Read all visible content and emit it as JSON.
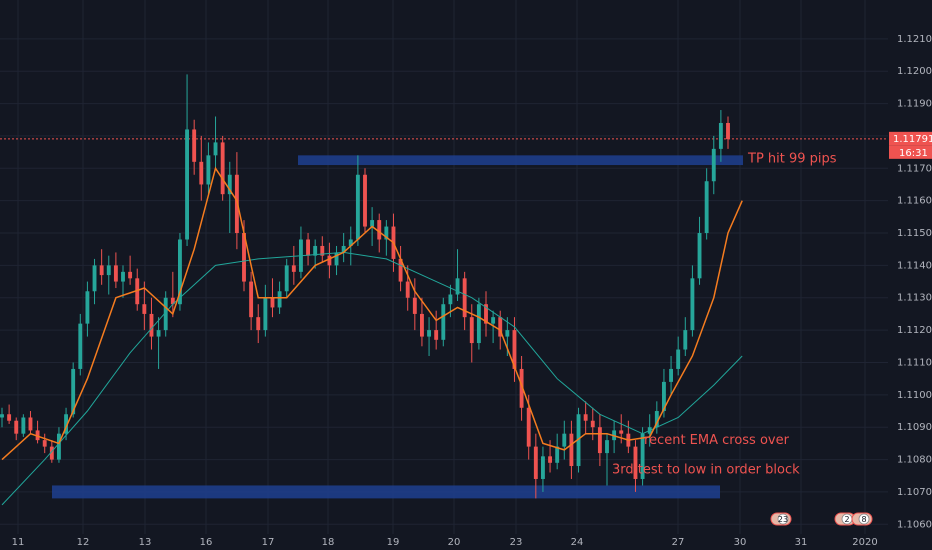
{
  "chart_data": {
    "type": "candlestick",
    "x_ticks": [
      "11",
      "12",
      "13",
      "16",
      "17",
      "18",
      "19",
      "20",
      "23",
      "24",
      "27",
      "30",
      "31",
      "2020"
    ],
    "y_ticks": [
      "1.12100",
      "1.12000",
      "1.11900",
      "1.11800",
      "1.11700",
      "1.11600",
      "1.11500",
      "1.11400",
      "1.11300",
      "1.11200",
      "1.11100",
      "1.11000",
      "1.10900",
      "1.10800",
      "1.10700",
      "1.10600"
    ],
    "ylim": [
      1.1057,
      1.1222
    ],
    "last_price": "1.11791",
    "countdown": "16:31",
    "colors": {
      "up": "#26a69a",
      "down": "#ef5350",
      "ema_fast": "#f57c1f",
      "ema_slow": "#21a69a",
      "zone": "#1e3f8f",
      "annotation": "#ef5350"
    },
    "zones": [
      {
        "from_tick": "17",
        "to_tick": "27",
        "low": 1.1171,
        "high": 1.1174
      },
      {
        "from_tick": "11",
        "to_tick": "27",
        "low": 1.1068,
        "high": 1.1072
      }
    ],
    "annotations": [
      {
        "text": "TP hit 99 pips",
        "price": 1.1173
      },
      {
        "text": "recent EMA cross over",
        "price": 1.1086
      },
      {
        "text": "3rd test to low in order block",
        "price": 1.1077
      }
    ],
    "event_badges": [
      "23",
      "2",
      "8"
    ],
    "candles": [
      [
        1.1093,
        1.1096,
        1.109,
        1.1094
      ],
      [
        1.1094,
        1.1097,
        1.1091,
        1.1092
      ],
      [
        1.1092,
        1.1093,
        1.1086,
        1.1088
      ],
      [
        1.1088,
        1.1094,
        1.1087,
        1.1093
      ],
      [
        1.1093,
        1.1095,
        1.1088,
        1.1089
      ],
      [
        1.1089,
        1.1092,
        1.1085,
        1.1086
      ],
      [
        1.1086,
        1.1088,
        1.1082,
        1.1084
      ],
      [
        1.1084,
        1.1086,
        1.1079,
        1.108
      ],
      [
        1.108,
        1.109,
        1.1079,
        1.1088
      ],
      [
        1.1088,
        1.1096,
        1.1086,
        1.1094
      ],
      [
        1.1094,
        1.111,
        1.1093,
        1.1108
      ],
      [
        1.1108,
        1.1125,
        1.1106,
        1.1122
      ],
      [
        1.1122,
        1.1135,
        1.1118,
        1.1132
      ],
      [
        1.1132,
        1.1142,
        1.1128,
        1.114
      ],
      [
        1.114,
        1.1145,
        1.1134,
        1.1137
      ],
      [
        1.1137,
        1.1143,
        1.1131,
        1.114
      ],
      [
        1.114,
        1.1144,
        1.1133,
        1.1135
      ],
      [
        1.1135,
        1.114,
        1.113,
        1.1138
      ],
      [
        1.1138,
        1.1143,
        1.1134,
        1.1136
      ],
      [
        1.1136,
        1.1139,
        1.1126,
        1.1128
      ],
      [
        1.1128,
        1.1135,
        1.112,
        1.1125
      ],
      [
        1.1125,
        1.113,
        1.1114,
        1.1118
      ],
      [
        1.1118,
        1.1124,
        1.1108,
        1.112
      ],
      [
        1.112,
        1.1132,
        1.1118,
        1.113
      ],
      [
        1.113,
        1.1138,
        1.1124,
        1.1128
      ],
      [
        1.1128,
        1.115,
        1.1126,
        1.1148
      ],
      [
        1.1148,
        1.1199,
        1.1146,
        1.1182
      ],
      [
        1.1182,
        1.1185,
        1.1168,
        1.1172
      ],
      [
        1.1172,
        1.118,
        1.116,
        1.1165
      ],
      [
        1.1165,
        1.1178,
        1.1162,
        1.1174
      ],
      [
        1.1174,
        1.1186,
        1.117,
        1.1178
      ],
      [
        1.1178,
        1.118,
        1.116,
        1.1162
      ],
      [
        1.1162,
        1.1172,
        1.115,
        1.1168
      ],
      [
        1.1168,
        1.1175,
        1.1145,
        1.115
      ],
      [
        1.115,
        1.1154,
        1.1132,
        1.1135
      ],
      [
        1.1135,
        1.1138,
        1.112,
        1.1124
      ],
      [
        1.1124,
        1.1128,
        1.1116,
        1.112
      ],
      [
        1.112,
        1.1134,
        1.1118,
        1.113
      ],
      [
        1.113,
        1.1136,
        1.1124,
        1.1127
      ],
      [
        1.1127,
        1.1135,
        1.1125,
        1.1132
      ],
      [
        1.1132,
        1.1142,
        1.113,
        1.114
      ],
      [
        1.114,
        1.1146,
        1.1134,
        1.1138
      ],
      [
        1.1138,
        1.1152,
        1.1136,
        1.1148
      ],
      [
        1.1148,
        1.115,
        1.114,
        1.1143
      ],
      [
        1.1143,
        1.1148,
        1.1139,
        1.1146
      ],
      [
        1.1146,
        1.1149,
        1.1141,
        1.1143
      ],
      [
        1.1143,
        1.1147,
        1.1136,
        1.114
      ],
      [
        1.114,
        1.1146,
        1.1137,
        1.1144
      ],
      [
        1.1144,
        1.115,
        1.1141,
        1.1146
      ],
      [
        1.1146,
        1.1152,
        1.114,
        1.1148
      ],
      [
        1.1148,
        1.1174,
        1.1146,
        1.1168
      ],
      [
        1.1168,
        1.117,
        1.115,
        1.1152
      ],
      [
        1.1152,
        1.1158,
        1.1146,
        1.1154
      ],
      [
        1.1154,
        1.1156,
        1.1144,
        1.1148
      ],
      [
        1.1148,
        1.1154,
        1.1143,
        1.1152
      ],
      [
        1.1152,
        1.1156,
        1.1138,
        1.1142
      ],
      [
        1.1142,
        1.1146,
        1.1132,
        1.1135
      ],
      [
        1.1135,
        1.114,
        1.1126,
        1.113
      ],
      [
        1.113,
        1.1136,
        1.112,
        1.1125
      ],
      [
        1.1125,
        1.113,
        1.1115,
        1.1118
      ],
      [
        1.1118,
        1.1124,
        1.1112,
        1.112
      ],
      [
        1.112,
        1.1126,
        1.1114,
        1.1117
      ],
      [
        1.1117,
        1.113,
        1.1115,
        1.1128
      ],
      [
        1.1128,
        1.1134,
        1.1124,
        1.1131
      ],
      [
        1.1131,
        1.1145,
        1.1129,
        1.1136
      ],
      [
        1.1136,
        1.1138,
        1.112,
        1.1124
      ],
      [
        1.1124,
        1.1128,
        1.111,
        1.1116
      ],
      [
        1.1116,
        1.113,
        1.1114,
        1.1128
      ],
      [
        1.1128,
        1.1132,
        1.1118,
        1.1122
      ],
      [
        1.1122,
        1.1126,
        1.1116,
        1.1124
      ],
      [
        1.1124,
        1.1126,
        1.1114,
        1.1118
      ],
      [
        1.1118,
        1.1124,
        1.1112,
        1.112
      ],
      [
        1.112,
        1.1124,
        1.1104,
        1.1108
      ],
      [
        1.1108,
        1.1112,
        1.1092,
        1.1096
      ],
      [
        1.1096,
        1.11,
        1.108,
        1.1084
      ],
      [
        1.1084,
        1.1088,
        1.1068,
        1.1074
      ],
      [
        1.1074,
        1.1084,
        1.107,
        1.1081
      ],
      [
        1.1081,
        1.1086,
        1.1076,
        1.1079
      ],
      [
        1.1079,
        1.1088,
        1.1077,
        1.1084
      ],
      [
        1.1084,
        1.1092,
        1.108,
        1.1088
      ],
      [
        1.1088,
        1.1092,
        1.1074,
        1.1078
      ],
      [
        1.1078,
        1.1096,
        1.1076,
        1.1094
      ],
      [
        1.1094,
        1.1098,
        1.1088,
        1.1092
      ],
      [
        1.1092,
        1.1096,
        1.1086,
        1.109
      ],
      [
        1.109,
        1.1094,
        1.1078,
        1.1082
      ],
      [
        1.1082,
        1.1088,
        1.1072,
        1.1086
      ],
      [
        1.1086,
        1.1092,
        1.1082,
        1.1089
      ],
      [
        1.1089,
        1.1094,
        1.1085,
        1.1088
      ],
      [
        1.1088,
        1.1092,
        1.1082,
        1.1084
      ],
      [
        1.1084,
        1.1086,
        1.107,
        1.1074
      ],
      [
        1.1074,
        1.109,
        1.1072,
        1.1088
      ],
      [
        1.1088,
        1.1094,
        1.1084,
        1.109
      ],
      [
        1.109,
        1.1098,
        1.1088,
        1.1095
      ],
      [
        1.1095,
        1.1108,
        1.1093,
        1.1104
      ],
      [
        1.1104,
        1.1112,
        1.11,
        1.1108
      ],
      [
        1.1108,
        1.1118,
        1.1106,
        1.1114
      ],
      [
        1.1114,
        1.1124,
        1.1112,
        1.112
      ],
      [
        1.112,
        1.114,
        1.1118,
        1.1136
      ],
      [
        1.1136,
        1.1155,
        1.1134,
        1.115
      ],
      [
        1.115,
        1.117,
        1.1148,
        1.1166
      ],
      [
        1.1166,
        1.118,
        1.1162,
        1.1176
      ],
      [
        1.1176,
        1.1188,
        1.1172,
        1.1184
      ],
      [
        1.1184,
        1.1186,
        1.1176,
        1.1179
      ]
    ],
    "ema_fast": [
      [
        0,
        1.108
      ],
      [
        4,
        1.1088
      ],
      [
        8,
        1.1085
      ],
      [
        12,
        1.1105
      ],
      [
        16,
        1.113
      ],
      [
        20,
        1.1133
      ],
      [
        24,
        1.1125
      ],
      [
        27,
        1.1145
      ],
      [
        30,
        1.117
      ],
      [
        33,
        1.116
      ],
      [
        36,
        1.113
      ],
      [
        40,
        1.113
      ],
      [
        44,
        1.114
      ],
      [
        48,
        1.1144
      ],
      [
        52,
        1.1152
      ],
      [
        55,
        1.1147
      ],
      [
        58,
        1.1132
      ],
      [
        61,
        1.1123
      ],
      [
        64,
        1.1127
      ],
      [
        67,
        1.1124
      ],
      [
        70,
        1.112
      ],
      [
        73,
        1.1103
      ],
      [
        76,
        1.1085
      ],
      [
        79,
        1.1083
      ],
      [
        82,
        1.1088
      ],
      [
        85,
        1.1088
      ],
      [
        88,
        1.1086
      ],
      [
        91,
        1.1087
      ],
      [
        94,
        1.11
      ],
      [
        97,
        1.1112
      ],
      [
        100,
        1.113
      ],
      [
        102,
        1.115
      ],
      [
        104,
        1.116
      ]
    ],
    "ema_slow": [
      [
        0,
        1.1066
      ],
      [
        6,
        1.108
      ],
      [
        12,
        1.1095
      ],
      [
        18,
        1.1113
      ],
      [
        24,
        1.1128
      ],
      [
        30,
        1.114
      ],
      [
        36,
        1.1142
      ],
      [
        42,
        1.1143
      ],
      [
        48,
        1.1144
      ],
      [
        54,
        1.1142
      ],
      [
        60,
        1.1136
      ],
      [
        66,
        1.113
      ],
      [
        72,
        1.1121
      ],
      [
        78,
        1.1105
      ],
      [
        84,
        1.1094
      ],
      [
        90,
        1.1088
      ],
      [
        95,
        1.1093
      ],
      [
        100,
        1.1103
      ],
      [
        104,
        1.1112
      ]
    ]
  }
}
